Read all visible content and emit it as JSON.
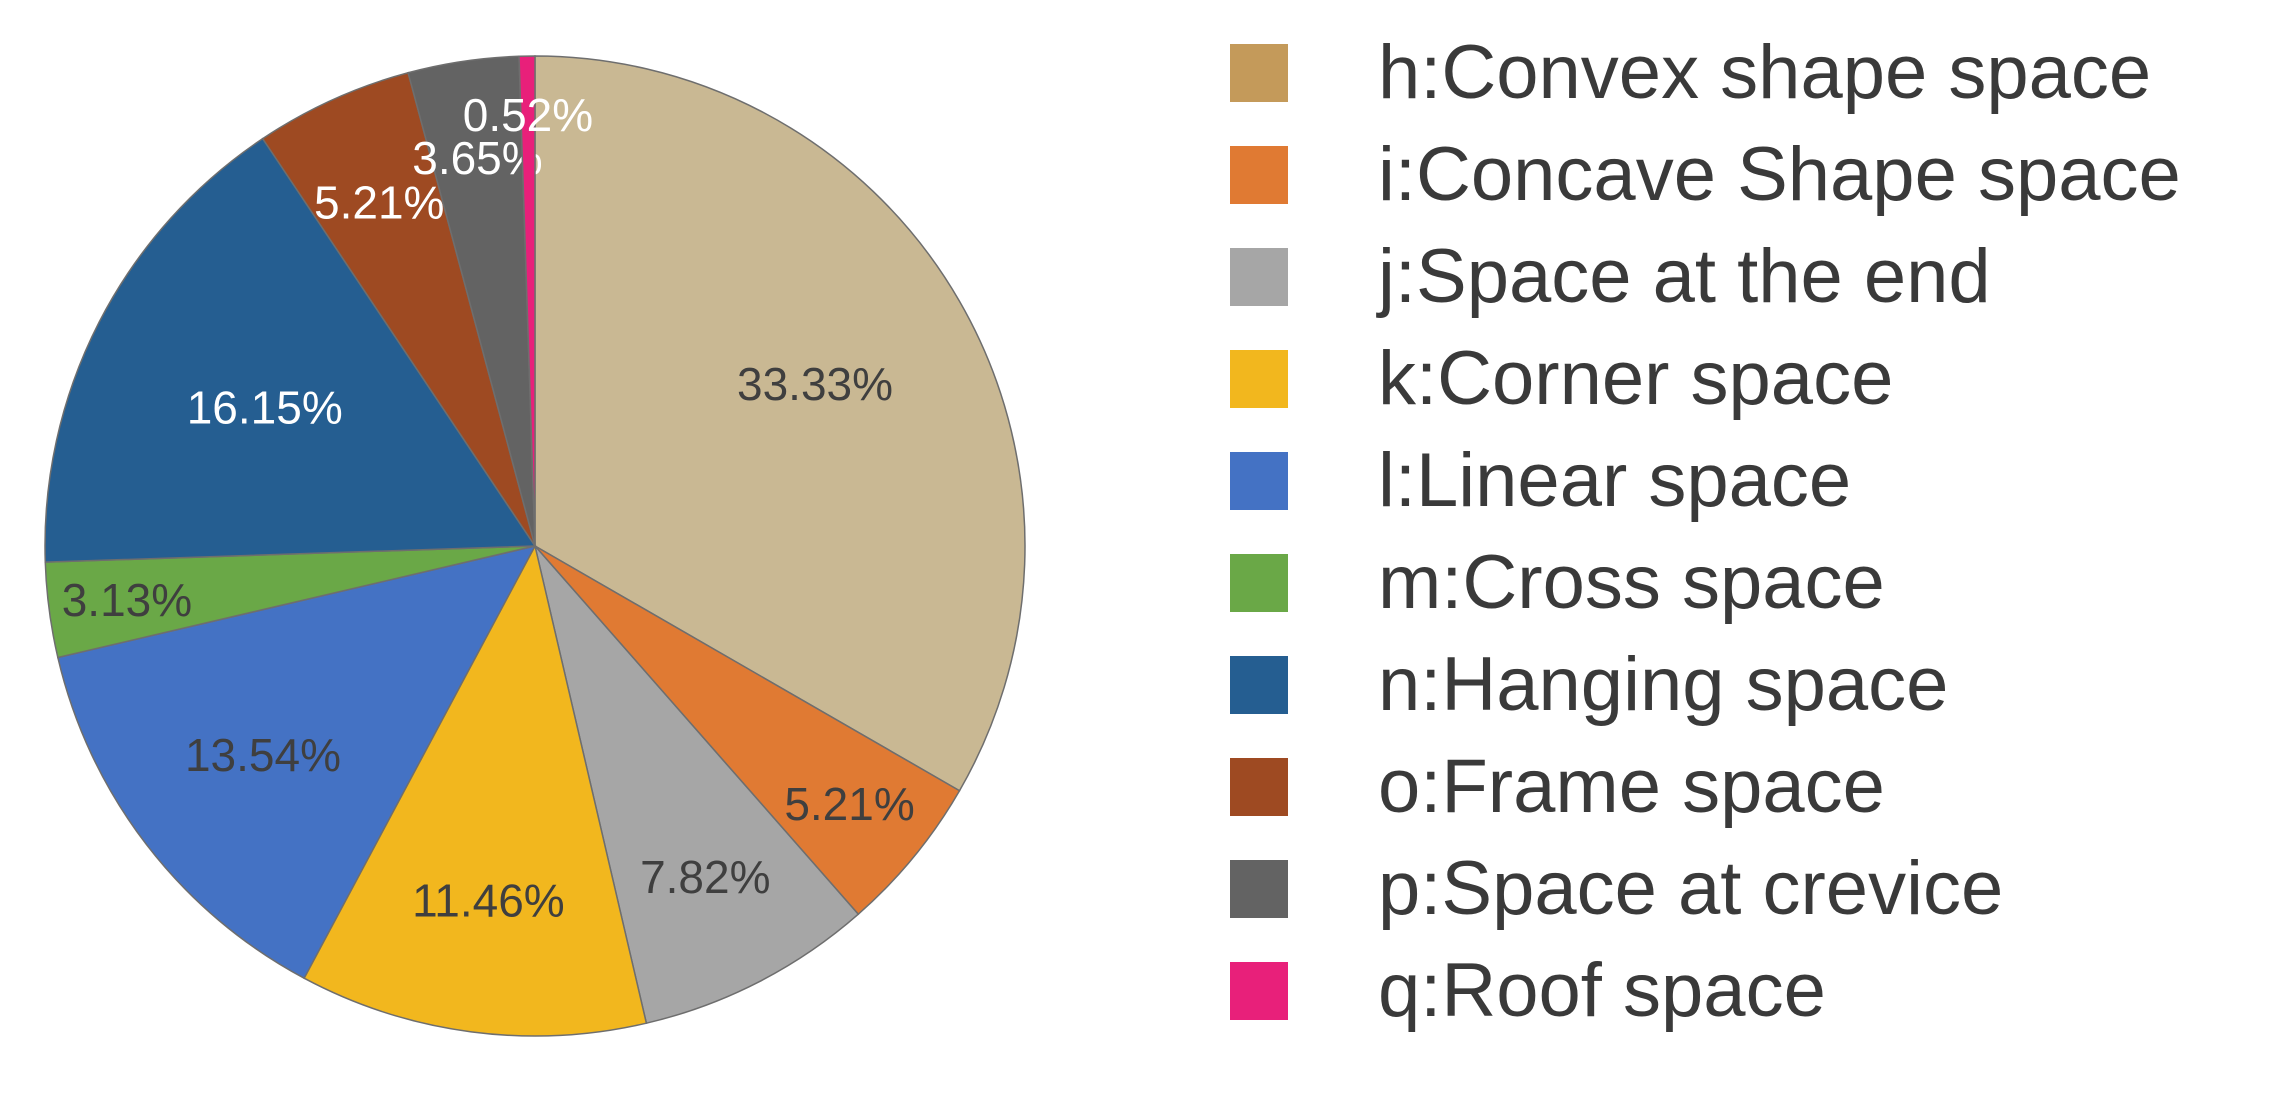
{
  "chart_data": {
    "type": "pie",
    "title": "",
    "slices": [
      {
        "name": "h:Convex shape space",
        "value": 33.33,
        "label": "33.33%",
        "color": "#c9b893",
        "swatch": "#c49a5a",
        "label_color": "#3f3f3f"
      },
      {
        "name": "i:Concave Shape space",
        "value": 5.21,
        "label": "5.21%",
        "color": "#e07a33",
        "swatch": "#e07a33",
        "label_color": "#3f3f3f"
      },
      {
        "name": "j:Space at the end",
        "value": 7.82,
        "label": "7.82%",
        "color": "#a6a6a6",
        "swatch": "#a6a6a6",
        "label_color": "#3f3f3f"
      },
      {
        "name": "k:Corner space",
        "value": 11.46,
        "label": "11.46%",
        "color": "#f2b71e",
        "swatch": "#f2b71e",
        "label_color": "#3f3f3f"
      },
      {
        "name": "l:Linear space",
        "value": 13.54,
        "label": "13.54%",
        "color": "#4472c4",
        "swatch": "#4472c4",
        "label_color": "#3f3f3f"
      },
      {
        "name": "m:Cross space",
        "value": 3.13,
        "label": "3.13%",
        "color": "#6aa847",
        "swatch": "#6aa847",
        "label_color": "#3f3f3f"
      },
      {
        "name": "n:Hanging space",
        "value": 16.15,
        "label": "16.15%",
        "color": "#255e91",
        "swatch": "#255e91",
        "label_color": "#ffffff"
      },
      {
        "name": "o:Frame space",
        "value": 5.21,
        "label": "5.21%",
        "color": "#9e4a22",
        "swatch": "#9e4a22",
        "label_color": "#ffffff"
      },
      {
        "name": "p:Space at crevice",
        "value": 3.65,
        "label": "3.65%",
        "color": "#636363",
        "swatch": "#636363",
        "label_color": "#ffffff"
      },
      {
        "name": "q:Roof  space",
        "value": 0.52,
        "label": "0.52%",
        "color": "#e8207a",
        "swatch": "#e8207a",
        "label_color": "#ffffff"
      }
    ],
    "legend_position": "right",
    "start_angle": "12 o'clock",
    "direction": "clockwise"
  }
}
